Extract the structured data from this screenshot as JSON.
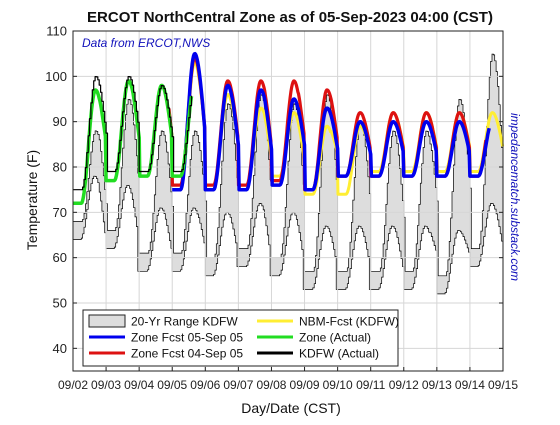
{
  "chart_data": {
    "type": "line",
    "title": "ERCOT NorthCentral Zone as of 05-Sep-2023 04:00 (CST)",
    "source_note": "Data from ERCOT,NWS",
    "side_note": "impedancematch.substack.com",
    "xlabel": "Day/Date (CST)",
    "ylabel": "Temperature (F)",
    "ylim": [
      35,
      110
    ],
    "y_ticks": [
      40,
      50,
      60,
      70,
      80,
      90,
      100,
      110
    ],
    "xlim": [
      0,
      13
    ],
    "x_ticks": [
      "09/02",
      "09/03",
      "09/04",
      "09/05",
      "09/06",
      "09/07",
      "09/08",
      "09/09",
      "09/10",
      "09/11",
      "09/12",
      "09/13",
      "09/14",
      "09/15"
    ],
    "grid": true,
    "legend_position": "bottom-left",
    "colors": {
      "range_fill": "#dddddd",
      "zone_fcst_0905": "#0000ee",
      "zone_fcst_0904": "#dd1111",
      "nbm_fcst": "#ffee33",
      "zone_actual": "#22dd22",
      "kdfw_actual": "#000000",
      "source_text": "#1111bb"
    },
    "range_band": {
      "name": "20-Yr Range KDFW",
      "day_max": [
        88,
        95,
        88,
        88,
        94,
        96,
        94,
        96,
        90,
        88,
        88,
        95,
        105
      ],
      "day_min": [
        68,
        66,
        61,
        61,
        60,
        62,
        60,
        57,
        57,
        57,
        57,
        56,
        62
      ]
    },
    "series": [
      {
        "name": "20-Yr Range KDFW",
        "style": "band"
      },
      {
        "name": "Zone Fcst 05-Sep 05",
        "color": "#0000ee",
        "start_day": 3.0,
        "highs": [
          101,
          102,
          102,
          105,
          98,
          97,
          95,
          93,
          90
        ],
        "lows": [
          79,
          79,
          77,
          75,
          75,
          75,
          76,
          75,
          78
        ]
      },
      {
        "name": "Zone Fcst 04-Sep 05",
        "color": "#dd1111",
        "start_day": 2.9,
        "highs": [
          100,
          101,
          101,
          104,
          99,
          99,
          99,
          97,
          92
        ],
        "lows": [
          77,
          78,
          77,
          76,
          76,
          76,
          77,
          75,
          78
        ]
      },
      {
        "name": "NBM-Fcst (KDFW)",
        "color": "#ffee33",
        "start_day": 3.2,
        "highs": [
          100,
          100,
          100,
          103,
          96,
          93,
          92,
          89,
          89,
          92
        ],
        "lows": [
          77,
          78,
          77,
          75,
          75,
          76,
          78,
          74,
          74,
          79
        ]
      },
      {
        "name": "Zone (Actual)",
        "color": "#22dd22",
        "start_day": 0.0,
        "highs": [
          97,
          99,
          98
        ],
        "lows": [
          72,
          77,
          78,
          78
        ]
      },
      {
        "name": "KDFW (Actual)",
        "color": "#000000",
        "start_day": 0.0,
        "highs": [
          100,
          100,
          98
        ],
        "lows": [
          75,
          79,
          79,
          79
        ]
      }
    ]
  }
}
